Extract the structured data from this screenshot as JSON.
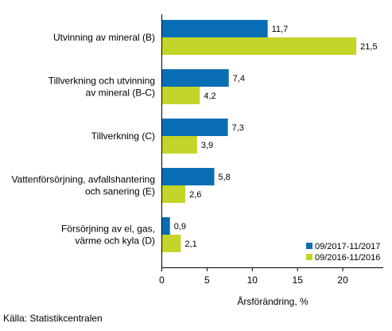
{
  "chart_data": {
    "type": "bar",
    "orientation": "horizontal",
    "categories": [
      [
        "Utvinning av mineral (B)"
      ],
      [
        "Tillverkning och utvinning",
        "av mineral (B-C)"
      ],
      [
        "Tillverkning (C)"
      ],
      [
        "Vattenförsörjning, avfallshantering",
        "och sanering (E)"
      ],
      [
        "Försörjning av el, gas,",
        "värme och kyla (D)"
      ]
    ],
    "series": [
      {
        "name": "09/2017-11/2017",
        "color": "#0a6eb4",
        "values": [
          11.7,
          7.4,
          7.3,
          5.8,
          0.9
        ],
        "labels": [
          "11,7",
          "7,4",
          "7,3",
          "5,8",
          "0,9"
        ]
      },
      {
        "name": "09/2016-11/2016",
        "color": "#c4d52a",
        "values": [
          21.5,
          4.2,
          3.9,
          2.6,
          2.1
        ],
        "labels": [
          "21,5",
          "4,2",
          "3,9",
          "2,6",
          "2,1"
        ]
      }
    ],
    "xlabel": "Årsförändring, %",
    "xlim": [
      0,
      24
    ],
    "xticks": [
      0,
      5,
      10,
      15,
      20
    ],
    "grid": false,
    "legend_position": "bottom-right"
  },
  "source": "Källa: Statistikcentralen"
}
